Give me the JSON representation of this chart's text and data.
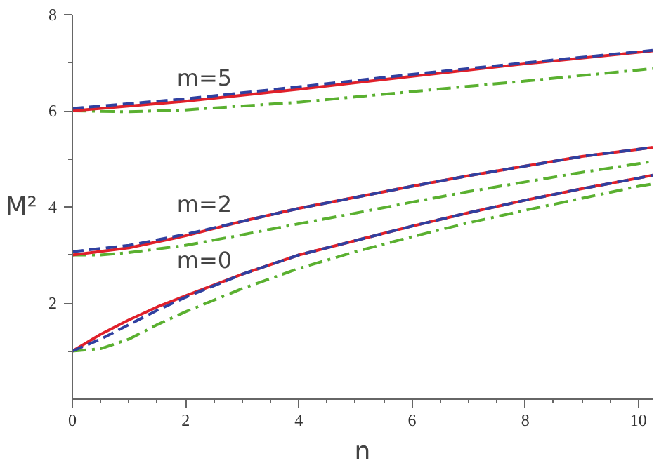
{
  "chart_data": {
    "type": "line",
    "xlabel": "n",
    "ylabel": "M²",
    "xlim": [
      0,
      10.25
    ],
    "ylim": [
      0,
      8
    ],
    "xticks": [
      0,
      {
        "value": 0.5,
        "label": null
      },
      {
        "value": 1,
        "label": null
      },
      {
        "value": 1.5,
        "label": null
      },
      2,
      {
        "value": 2.5,
        "label": null
      },
      {
        "value": 3,
        "label": null
      },
      {
        "value": 3.5,
        "label": null
      },
      4,
      {
        "value": 4.5,
        "label": null
      },
      {
        "value": 5,
        "label": null
      },
      {
        "value": 5.5,
        "label": null
      },
      6,
      {
        "value": 6.5,
        "label": null
      },
      {
        "value": 7,
        "label": null
      },
      {
        "value": 7.5,
        "label": null
      },
      8,
      {
        "value": 8.5,
        "label": null
      },
      {
        "value": 9,
        "label": null
      },
      {
        "value": 9.5,
        "label": null
      },
      10
    ],
    "yticks": [
      {
        "value": 1,
        "label": null
      },
      2,
      {
        "value": 3,
        "label": null
      },
      4,
      {
        "value": 5,
        "label": null
      },
      6,
      {
        "value": 7,
        "label": null
      },
      8
    ],
    "grid": false,
    "marker": "none",
    "annotations": [
      "m=5",
      "m=2",
      "m=0"
    ],
    "series": [
      {
        "color": "#3040a0",
        "line_style": "dashed",
        "x": [
          0,
          0.5,
          1,
          1.5,
          2,
          3,
          4,
          5,
          6,
          7,
          8,
          9,
          10,
          10.25
        ],
        "values": [
          1.0,
          1.25,
          1.55,
          1.85,
          2.12,
          2.6,
          3.0,
          3.3,
          3.6,
          3.88,
          4.14,
          4.38,
          4.6,
          4.66
        ]
      },
      {
        "color": "#5ab030",
        "line_style": "dashdot",
        "x": [
          0,
          0.5,
          1,
          1.5,
          2,
          3,
          4,
          5,
          6,
          7,
          8,
          9,
          10,
          10.25
        ],
        "values": [
          1.0,
          1.05,
          1.25,
          1.55,
          1.82,
          2.3,
          2.72,
          3.07,
          3.38,
          3.67,
          3.93,
          4.18,
          4.43,
          4.48
        ]
      },
      {
        "color": "#e0202a",
        "line_style": "solid",
        "x": [
          0,
          0.5,
          1,
          1.5,
          2,
          3,
          4,
          5,
          6,
          7,
          8,
          9,
          10,
          10.25
        ],
        "values": [
          1.0,
          1.35,
          1.65,
          1.92,
          2.15,
          2.6,
          3.0,
          3.3,
          3.6,
          3.88,
          4.14,
          4.38,
          4.6,
          4.66
        ]
      },
      {
        "color": "#3040a0",
        "line_style": "dashed",
        "x": [
          0,
          1,
          2,
          3,
          4,
          5,
          6,
          7,
          8,
          9,
          10,
          10.25
        ],
        "values": [
          3.07,
          3.2,
          3.43,
          3.7,
          3.97,
          4.2,
          4.43,
          4.65,
          4.85,
          5.05,
          5.2,
          5.24
        ]
      },
      {
        "color": "#5ab030",
        "line_style": "dashdot",
        "x": [
          0,
          0.5,
          1,
          2,
          3,
          4,
          5,
          6,
          7,
          8,
          9,
          10,
          10.25
        ],
        "values": [
          3.0,
          3.0,
          3.05,
          3.2,
          3.42,
          3.65,
          3.87,
          4.1,
          4.32,
          4.52,
          4.72,
          4.9,
          4.95
        ]
      },
      {
        "color": "#e0202a",
        "line_style": "solid",
        "x": [
          0,
          1,
          2,
          3,
          4,
          5,
          6,
          7,
          8,
          9,
          10,
          10.25
        ],
        "values": [
          3.0,
          3.15,
          3.4,
          3.7,
          3.97,
          4.2,
          4.43,
          4.65,
          4.85,
          5.05,
          5.2,
          5.24
        ]
      },
      {
        "color": "#3040a0",
        "line_style": "dashed",
        "x": [
          0,
          2,
          4,
          6,
          8,
          10,
          10.25
        ],
        "values": [
          6.05,
          6.25,
          6.5,
          6.76,
          7.0,
          7.23,
          7.26
        ]
      },
      {
        "color": "#5ab030",
        "line_style": "dashdot",
        "x": [
          0,
          1,
          2,
          4,
          6,
          8,
          10,
          10.25
        ],
        "values": [
          6.0,
          5.98,
          6.02,
          6.18,
          6.4,
          6.62,
          6.85,
          6.88
        ]
      },
      {
        "color": "#e0202a",
        "line_style": "solid",
        "x": [
          0,
          2,
          4,
          6,
          8,
          10,
          10.25
        ],
        "values": [
          6.0,
          6.2,
          6.45,
          6.72,
          6.98,
          7.22,
          7.25
        ]
      }
    ]
  }
}
